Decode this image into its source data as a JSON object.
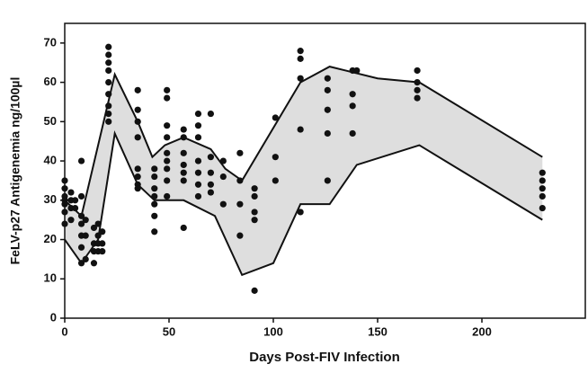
{
  "chart_data": {
    "type": "scatter",
    "x_label": "Days Post-FIV Infection",
    "y_label": "FeLV-p27 Antigenemia ng/100µl",
    "x": [
      0,
      0,
      0,
      0,
      0,
      0,
      0,
      3,
      3,
      3,
      3,
      5,
      5,
      8,
      8,
      8,
      8,
      8,
      8,
      8,
      10,
      10,
      10,
      14,
      14,
      14,
      14,
      16,
      16,
      16,
      16,
      18,
      18,
      18,
      21,
      21,
      21,
      21,
      21,
      21,
      21,
      21,
      21,
      35,
      35,
      35,
      35,
      35,
      35,
      35,
      35,
      43,
      43,
      43,
      43,
      43,
      43,
      43,
      49,
      49,
      49,
      49,
      49,
      49,
      49,
      49,
      49,
      57,
      57,
      57,
      57,
      57,
      57,
      57,
      64,
      64,
      64,
      64,
      64,
      64,
      64,
      70,
      70,
      70,
      70,
      70,
      76,
      76,
      76,
      84,
      84,
      84,
      84,
      91,
      91,
      91,
      91,
      91,
      101,
      101,
      101,
      113,
      113,
      113,
      113,
      113,
      126,
      126,
      126,
      126,
      126,
      138,
      138,
      138,
      138,
      140,
      169,
      169,
      169,
      169,
      229,
      229,
      229,
      229,
      229
    ],
    "values": [
      35,
      33,
      31,
      30,
      29,
      27,
      24,
      32,
      30,
      28,
      25,
      30,
      28,
      40,
      31,
      26,
      24,
      21,
      18,
      14,
      25,
      21,
      15,
      23,
      19,
      17,
      14,
      24,
      21,
      19,
      17,
      22,
      19,
      17,
      69,
      67,
      65,
      63,
      60,
      57,
      54,
      52,
      50,
      58,
      53,
      50,
      46,
      38,
      36,
      34,
      33,
      38,
      36,
      33,
      31,
      29,
      26,
      22,
      58,
      56,
      49,
      46,
      42,
      40,
      38,
      35,
      31,
      48,
      46,
      42,
      39,
      37,
      35,
      23,
      52,
      49,
      46,
      40,
      37,
      34,
      31,
      52,
      41,
      37,
      34,
      32,
      40,
      36,
      29,
      42,
      35,
      29,
      21,
      33,
      31,
      27,
      25,
      7,
      51,
      41,
      35,
      68,
      66,
      61,
      48,
      27,
      61,
      58,
      53,
      47,
      35,
      63,
      57,
      54,
      47,
      63,
      63,
      60,
      58,
      56,
      37,
      35,
      33,
      31,
      28
    ],
    "color": "#111111",
    "upper_line": {
      "x": [
        0,
        8,
        24,
        35,
        42,
        48,
        57,
        70,
        77,
        85,
        113,
        127,
        150,
        170,
        229
      ],
      "values": [
        30,
        26,
        62,
        50,
        41,
        44,
        46,
        43,
        38,
        35,
        60,
        64,
        61,
        60,
        41
      ]
    },
    "lower_line": {
      "x": [
        0,
        8,
        16,
        24,
        35,
        43,
        57,
        72,
        85,
        100,
        113,
        127,
        140,
        170,
        229
      ],
      "values": [
        20,
        14,
        20,
        47,
        34,
        30,
        30,
        26,
        11,
        14,
        29,
        29,
        39,
        44,
        25
      ]
    },
    "band_color": "#dedede",
    "xlim": [
      0,
      250
    ],
    "xticks": [
      0,
      50,
      100,
      150,
      200
    ],
    "ylim": [
      0,
      75
    ],
    "yticks": [
      0,
      10,
      20,
      30,
      40,
      50,
      60,
      70
    ]
  }
}
